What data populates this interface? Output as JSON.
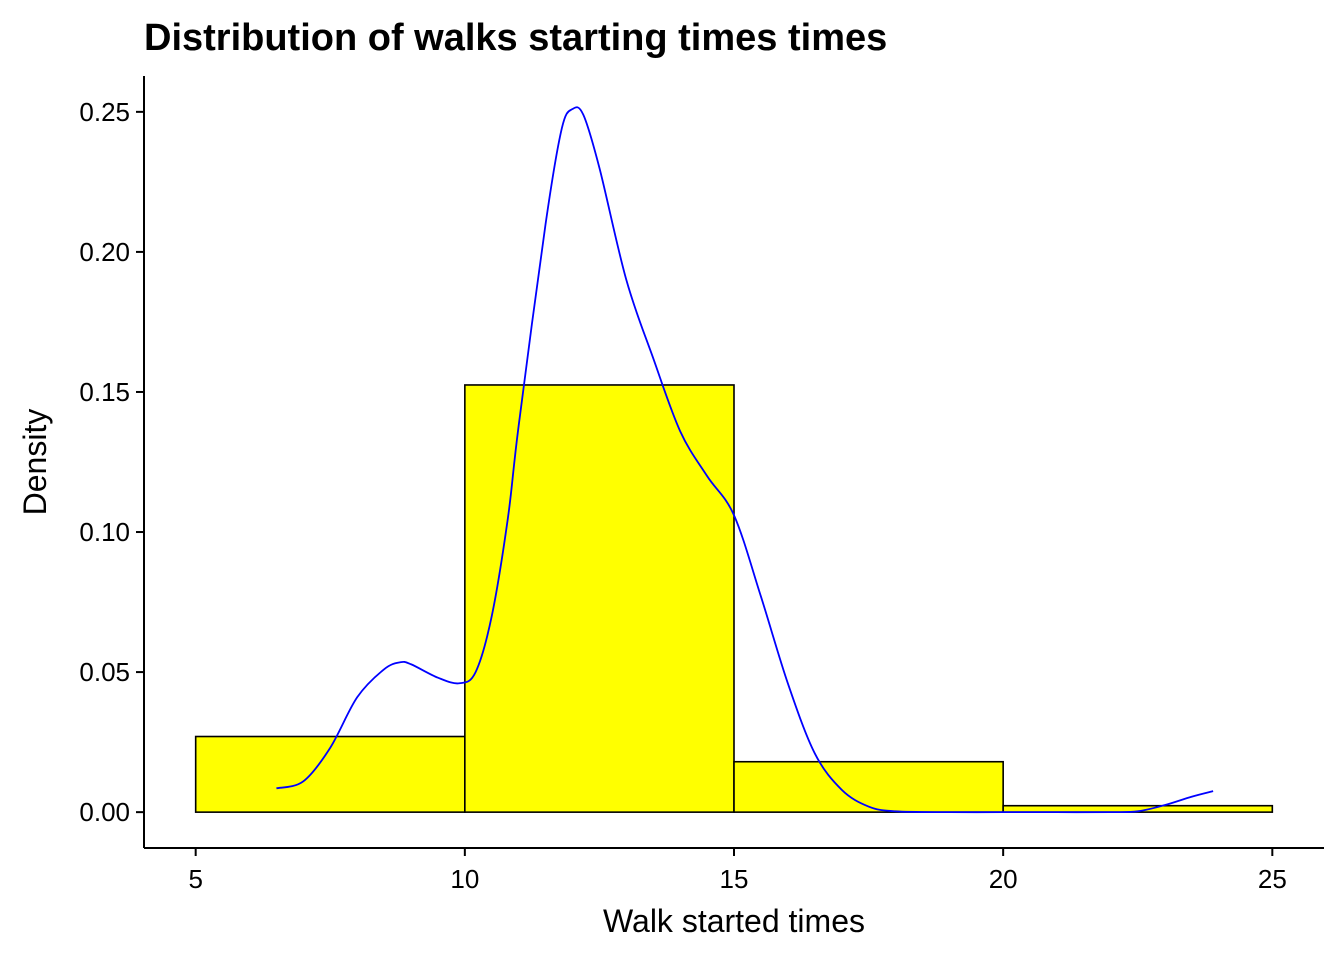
{
  "chart_data": {
    "type": "bar",
    "subtype": "histogram-with-density",
    "title": "Distribution of walks starting times times",
    "xlabel": "Walk started times",
    "ylabel": "Density",
    "xlim": [
      4.04,
      25.96
    ],
    "ylim": [
      -0.0128,
      0.2628
    ],
    "x_ticks": [
      5,
      10,
      15,
      20,
      25
    ],
    "x_tick_labels": [
      "5",
      "10",
      "15",
      "20",
      "25"
    ],
    "y_ticks": [
      0,
      0.05,
      0.1,
      0.15,
      0.2,
      0.25
    ],
    "y_tick_labels": [
      "0.00",
      "0.05",
      "0.10",
      "0.15",
      "0.20",
      "0.25"
    ],
    "grid": false,
    "legend": "none",
    "bins": [
      {
        "x_start": 5,
        "x_end": 10,
        "value": 0.027
      },
      {
        "x_start": 10,
        "x_end": 15,
        "value": 0.1525
      },
      {
        "x_start": 15,
        "x_end": 20,
        "value": 0.018
      },
      {
        "x_start": 20,
        "x_end": 25,
        "value": 0.0023
      }
    ],
    "bar_fill": "#ffff00",
    "bar_stroke": "#000000",
    "density_color": "#0000ff",
    "density_curve": {
      "x": [
        6.5,
        7.0,
        7.5,
        8.0,
        8.5,
        8.8,
        9.0,
        9.5,
        9.9,
        10.2,
        10.5,
        10.8,
        11.0,
        11.5,
        11.8,
        12.0,
        12.2,
        12.5,
        13.0,
        13.5,
        14.0,
        14.5,
        15.0,
        15.5,
        16.0,
        16.5,
        17.0,
        17.5,
        18.0,
        19.0,
        20.0,
        21.0,
        22.0,
        22.5,
        23.0,
        23.5,
        23.9
      ],
      "y": [
        0.0085,
        0.011,
        0.023,
        0.041,
        0.051,
        0.0535,
        0.0528,
        0.048,
        0.046,
        0.05,
        0.07,
        0.105,
        0.138,
        0.21,
        0.244,
        0.251,
        0.249,
        0.23,
        0.19,
        0.162,
        0.136,
        0.12,
        0.106,
        0.077,
        0.046,
        0.021,
        0.008,
        0.002,
        0.0003,
        0,
        0,
        0,
        0,
        0.0003,
        0.0025,
        0.0055,
        0.0075
      ]
    }
  }
}
